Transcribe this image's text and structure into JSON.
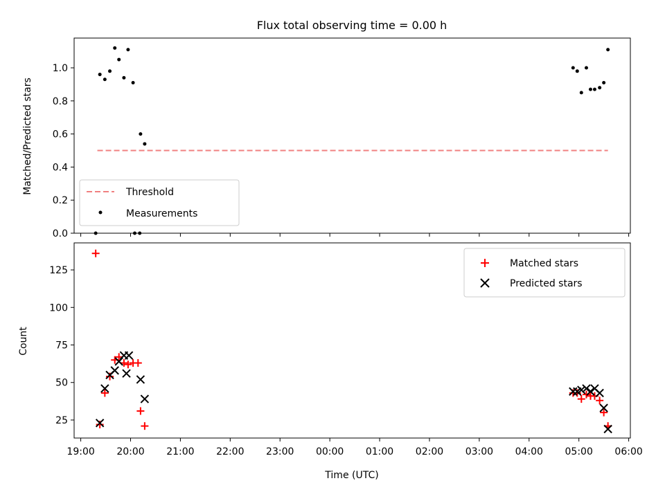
{
  "chart_data": [
    {
      "type": "scatter",
      "title": "Flux total observing time = 0.00 h",
      "xlabel": "",
      "ylabel": "Matched/Predicted stars",
      "xlim": [
        "18:52",
        "06:02"
      ],
      "ylim": [
        0,
        1.18
      ],
      "yticks": [
        0.0,
        0.2,
        0.4,
        0.6,
        0.8,
        1.0
      ],
      "ytick_labels": [
        "0.0",
        "0.2",
        "0.4",
        "0.6",
        "0.8",
        "1.0"
      ],
      "legend_position": "lower-left",
      "threshold": {
        "name": "Threshold",
        "value": 0.5,
        "x_range": [
          "19:20",
          "05:35"
        ],
        "color": "#f08080",
        "style": "dashed"
      },
      "series": [
        {
          "name": "Measurements",
          "marker": "dot",
          "color": "#000000",
          "points": [
            {
              "x": "19:18",
              "y": 0.0
            },
            {
              "x": "19:23",
              "y": 0.96
            },
            {
              "x": "19:29",
              "y": 0.93
            },
            {
              "x": "19:35",
              "y": 0.98
            },
            {
              "x": "19:41",
              "y": 1.12
            },
            {
              "x": "19:46",
              "y": 1.05
            },
            {
              "x": "19:52",
              "y": 0.94
            },
            {
              "x": "19:57",
              "y": 1.11
            },
            {
              "x": "20:03",
              "y": 0.91
            },
            {
              "x": "20:05",
              "y": 0.0
            },
            {
              "x": "20:11",
              "y": 0.0
            },
            {
              "x": "20:12",
              "y": 0.6
            },
            {
              "x": "20:17",
              "y": 0.54
            },
            {
              "x": "04:53",
              "y": 1.0
            },
            {
              "x": "04:58",
              "y": 0.98
            },
            {
              "x": "05:03",
              "y": 0.85
            },
            {
              "x": "05:09",
              "y": 1.0
            },
            {
              "x": "05:14",
              "y": 0.87
            },
            {
              "x": "05:19",
              "y": 0.87
            },
            {
              "x": "05:25",
              "y": 0.88
            },
            {
              "x": "05:30",
              "y": 0.91
            },
            {
              "x": "05:35",
              "y": 1.11
            }
          ]
        }
      ]
    },
    {
      "type": "scatter",
      "title": "",
      "xlabel": "Time (UTC)",
      "ylabel": "Count",
      "xlim": [
        "18:52",
        "06:02"
      ],
      "ylim": [
        13,
        143
      ],
      "yticks": [
        25,
        50,
        75,
        100,
        125
      ],
      "ytick_labels": [
        "25",
        "50",
        "75",
        "100",
        "125"
      ],
      "xticks": [
        "19:00",
        "20:00",
        "21:00",
        "22:00",
        "23:00",
        "00:00",
        "01:00",
        "02:00",
        "03:00",
        "04:00",
        "05:00",
        "06:00"
      ],
      "legend_position": "upper-right",
      "series": [
        {
          "name": "Matched stars",
          "marker": "plus",
          "color": "#ff0000",
          "points": [
            {
              "x": "19:18",
              "y": 136
            },
            {
              "x": "19:23",
              "y": 22
            },
            {
              "x": "19:29",
              "y": 43
            },
            {
              "x": "19:35",
              "y": 54
            },
            {
              "x": "19:41",
              "y": 65
            },
            {
              "x": "19:46",
              "y": 67
            },
            {
              "x": "19:52",
              "y": 63
            },
            {
              "x": "19:57",
              "y": 62
            },
            {
              "x": "20:03",
              "y": 63
            },
            {
              "x": "20:09",
              "y": 63
            },
            {
              "x": "20:12",
              "y": 31
            },
            {
              "x": "20:17",
              "y": 21
            },
            {
              "x": "04:53",
              "y": 43
            },
            {
              "x": "04:58",
              "y": 43
            },
            {
              "x": "05:03",
              "y": 39
            },
            {
              "x": "05:09",
              "y": 42
            },
            {
              "x": "05:14",
              "y": 41
            },
            {
              "x": "05:19",
              "y": 41
            },
            {
              "x": "05:25",
              "y": 38
            },
            {
              "x": "05:30",
              "y": 30
            },
            {
              "x": "05:35",
              "y": 21
            }
          ]
        },
        {
          "name": "Predicted stars",
          "marker": "x",
          "color": "#000000",
          "points": [
            {
              "x": "19:23",
              "y": 23
            },
            {
              "x": "19:29",
              "y": 46
            },
            {
              "x": "19:35",
              "y": 55
            },
            {
              "x": "19:41",
              "y": 58
            },
            {
              "x": "19:46",
              "y": 64
            },
            {
              "x": "19:52",
              "y": 68
            },
            {
              "x": "19:55",
              "y": 56
            },
            {
              "x": "19:58",
              "y": 68
            },
            {
              "x": "20:12",
              "y": 52
            },
            {
              "x": "20:17",
              "y": 39
            },
            {
              "x": "04:53",
              "y": 44
            },
            {
              "x": "04:58",
              "y": 44
            },
            {
              "x": "05:03",
              "y": 45
            },
            {
              "x": "05:09",
              "y": 46
            },
            {
              "x": "05:14",
              "y": 44
            },
            {
              "x": "05:19",
              "y": 46
            },
            {
              "x": "05:25",
              "y": 43
            },
            {
              "x": "05:30",
              "y": 33
            },
            {
              "x": "05:35",
              "y": 19
            }
          ]
        }
      ]
    }
  ]
}
